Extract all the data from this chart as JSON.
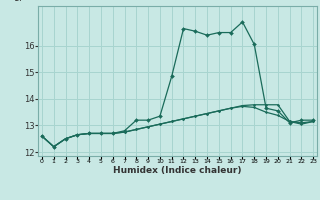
{
  "xlabel": "Humidex (Indice chaleur)",
  "background_color": "#c8e8e4",
  "grid_color": "#a8d4cf",
  "line_color": "#1a6b5a",
  "x_values": [
    0,
    1,
    2,
    3,
    4,
    5,
    6,
    7,
    8,
    9,
    10,
    11,
    12,
    13,
    14,
    15,
    16,
    17,
    18,
    19,
    20,
    21,
    22,
    23
  ],
  "y_main": [
    12.6,
    12.2,
    12.5,
    12.65,
    12.7,
    12.7,
    12.7,
    12.8,
    13.2,
    13.2,
    13.35,
    14.85,
    16.65,
    16.55,
    16.4,
    16.5,
    16.5,
    16.9,
    16.05,
    13.65,
    13.55,
    13.1,
    13.2,
    13.2
  ],
  "y_low": [
    12.6,
    12.2,
    12.5,
    12.65,
    12.7,
    12.7,
    12.7,
    12.75,
    12.85,
    12.95,
    13.05,
    13.15,
    13.25,
    13.35,
    13.45,
    13.55,
    13.65,
    13.72,
    13.68,
    13.5,
    13.38,
    13.15,
    13.1,
    13.15
  ],
  "y_high": [
    12.6,
    12.2,
    12.5,
    12.65,
    12.7,
    12.7,
    12.7,
    12.75,
    12.85,
    12.95,
    13.05,
    13.15,
    13.25,
    13.35,
    13.45,
    13.55,
    13.65,
    13.75,
    13.78,
    13.78,
    13.78,
    13.15,
    13.05,
    13.15
  ],
  "ylim": [
    11.85,
    17.5
  ],
  "xlim": [
    -0.3,
    23.3
  ],
  "yticks": [
    12,
    13,
    14,
    15,
    16
  ],
  "xtick_labels": [
    "0",
    "1",
    "2",
    "3",
    "4",
    "5",
    "6",
    "7",
    "8",
    "9",
    "10",
    "11",
    "12",
    "13",
    "14",
    "15",
    "16",
    "17",
    "18",
    "19",
    "20",
    "21",
    "22",
    "23"
  ]
}
